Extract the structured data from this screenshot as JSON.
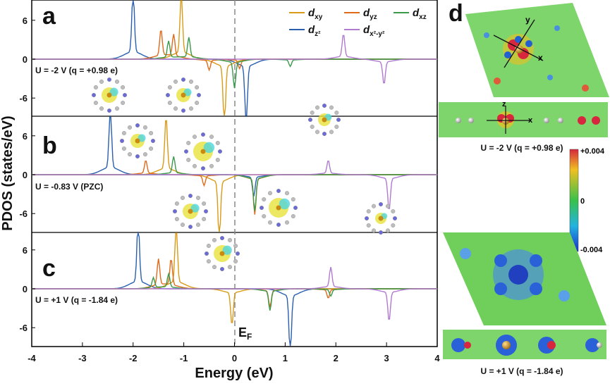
{
  "chart_data": {
    "type": "line",
    "xlabel": "Energy (eV)",
    "ylabel": "PDOS (states/eV)",
    "xlim": [
      -4,
      4
    ],
    "xticks": [
      "-4",
      "-3",
      "-2",
      "-1",
      "0",
      "1",
      "2",
      "3",
      "4"
    ],
    "yticks": [
      "6",
      "0",
      "-6"
    ],
    "fermi_label": "EF",
    "legend": {
      "placement": "top-right",
      "entries": [
        {
          "name": "d_xy",
          "label_main": "d",
          "label_sub": "xy",
          "color": "#d99a18"
        },
        {
          "name": "d_yz",
          "label_main": "d",
          "label_sub": "yz",
          "color": "#e06a1c"
        },
        {
          "name": "d_xz",
          "label_main": "d",
          "label_sub": "xz",
          "color": "#3a9a4a"
        },
        {
          "name": "d_z2",
          "label_main": "d",
          "label_sub": "z²",
          "color": "#2a5fb0"
        },
        {
          "name": "d_x2-y2",
          "label_main": "d",
          "label_sub": "x²-y²",
          "color": "#b07ad0"
        }
      ]
    },
    "panels": [
      {
        "label": "a",
        "condition": "U = -2 V (q = +0.98 e)",
        "series": {
          "d_z2": [
            [
              -2.0,
              9.5
            ],
            [
              0.23,
              -9
            ]
          ],
          "d_xy": [
            [
              -1.05,
              9
            ],
            [
              -0.2,
              -9
            ]
          ],
          "d_yz": [
            [
              -1.45,
              4
            ],
            [
              -1.2,
              3.3
            ],
            [
              -0.5,
              -1.5
            ],
            [
              0.1,
              -1.3
            ]
          ],
          "d_xz": [
            [
              -1.3,
              2.5
            ],
            [
              -0.9,
              3
            ],
            [
              0.0,
              -4
            ],
            [
              1.1,
              -1
            ]
          ],
          "d_x2-y2": [
            [
              2.15,
              3.5
            ],
            [
              2.95,
              -3.5
            ]
          ]
        }
      },
      {
        "label": "b",
        "condition": "U = -0.83 V (PZC)",
        "series": {
          "d_z2": [
            [
              -2.45,
              9.5
            ],
            [
              0.38,
              -3
            ]
          ],
          "d_xy": [
            [
              -1.35,
              8
            ],
            [
              -0.3,
              -9
            ]
          ],
          "d_yz": [
            [
              -1.75,
              2
            ],
            [
              -0.6,
              -1.5
            ],
            [
              0.4,
              -5.5
            ]
          ],
          "d_xz": [
            [
              -1.2,
              2.5
            ],
            [
              0.4,
              -5
            ]
          ],
          "d_x2-y2": [
            [
              1.85,
              2
            ],
            [
              3.05,
              -5
            ]
          ]
        }
      },
      {
        "label": "c",
        "condition": "U = +1 V (q = -1.84 e)",
        "series": {
          "d_z2": [
            [
              -1.9,
              9.5
            ],
            [
              1.1,
              -9
            ]
          ],
          "d_xy": [
            [
              -1.15,
              9
            ],
            [
              -0.05,
              -5
            ]
          ],
          "d_yz": [
            [
              -1.5,
              4
            ],
            [
              -1.25,
              4
            ],
            [
              0.7,
              -2.5
            ],
            [
              1.85,
              -1.3
            ]
          ],
          "d_xz": [
            [
              -1.6,
              1.5
            ],
            [
              -1.3,
              2
            ],
            [
              0.7,
              -3
            ],
            [
              1.9,
              -1
            ]
          ],
          "d_x2-y2": [
            [
              1.9,
              3
            ],
            [
              3.05,
              -4.5
            ]
          ]
        }
      }
    ]
  },
  "panel_d": {
    "label": "d",
    "caption_top": "U = -2 V (q = +0.98 e)",
    "caption_bottom": "U = +1 V (q = -1.84 e)",
    "axis_labels": {
      "x": "x",
      "y": "y",
      "z": "z"
    },
    "colorbar": {
      "max": "+0.004",
      "mid": "0",
      "min": "-0.004"
    }
  }
}
